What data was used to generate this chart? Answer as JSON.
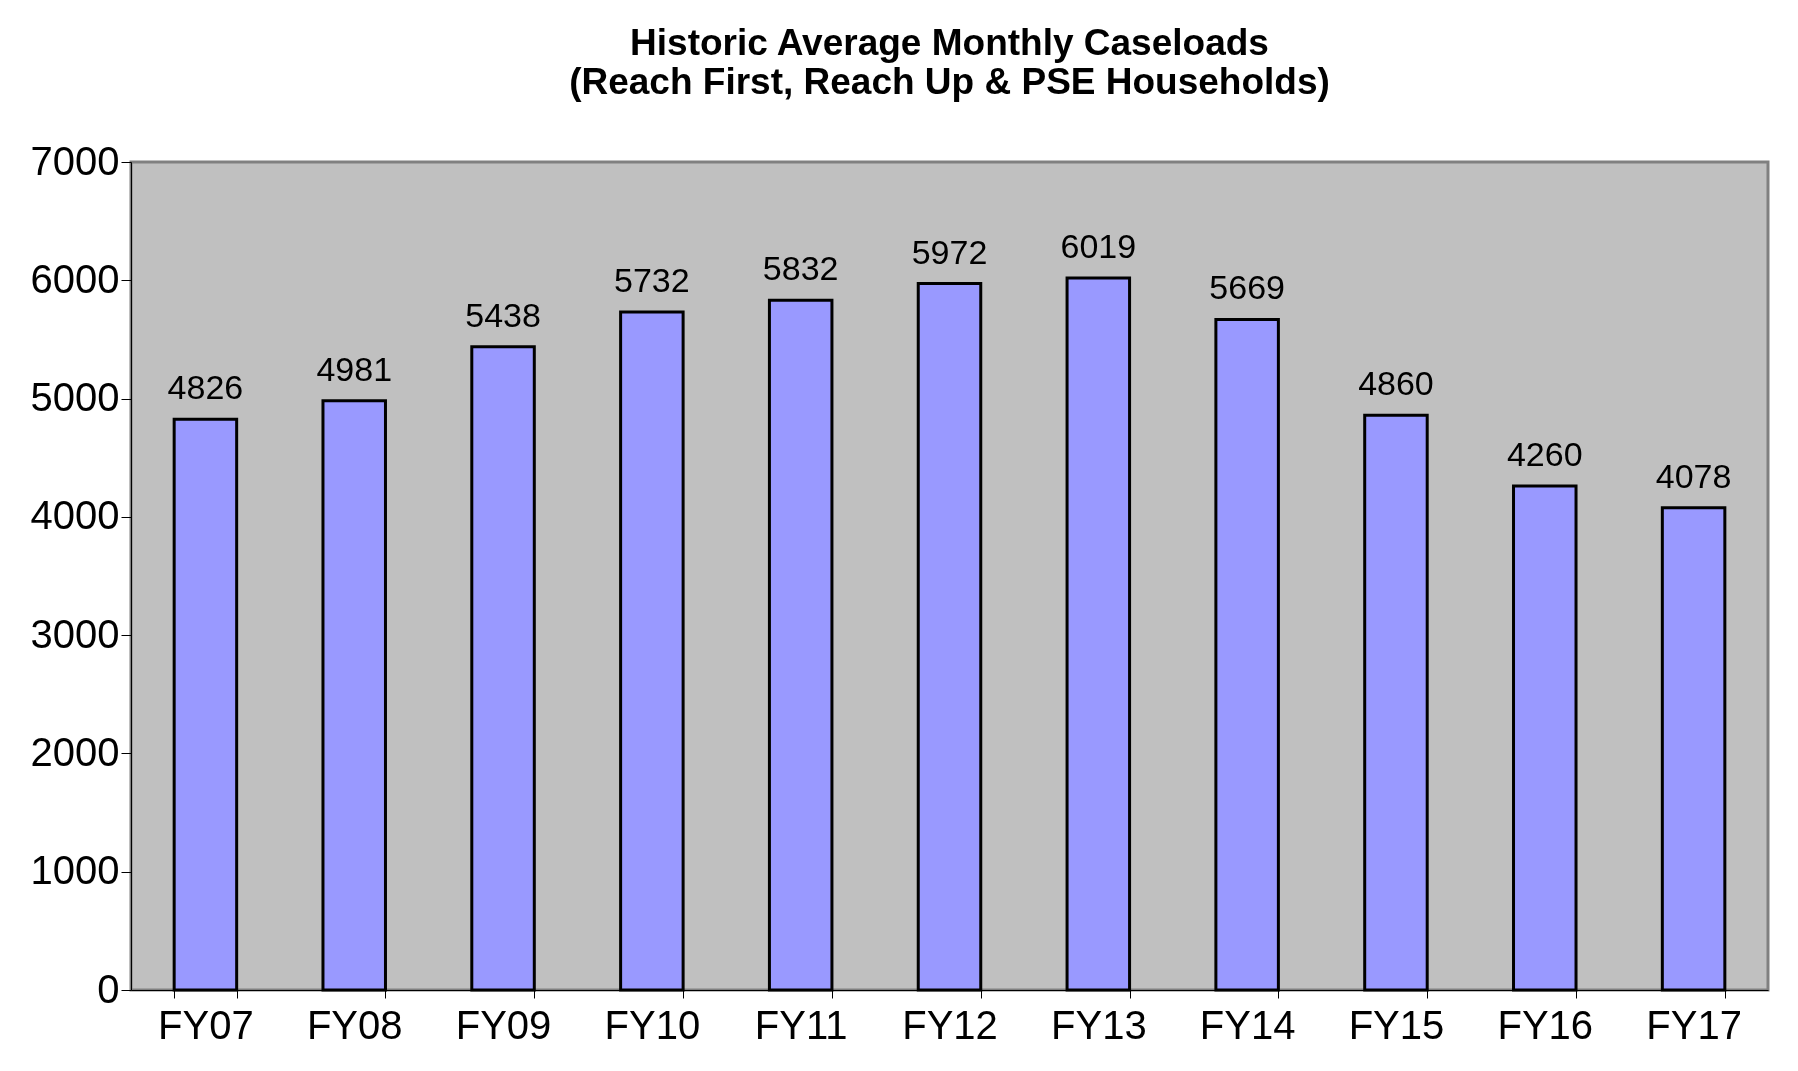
{
  "chart_data": {
    "type": "bar",
    "title": "Historic Average Monthly Caseloads\n(Reach First, Reach Up & PSE Households)",
    "categories": [
      "FY07",
      "FY08",
      "FY09",
      "FY10",
      "FY11",
      "FY12",
      "FY13",
      "FY14",
      "FY15",
      "FY16",
      "FY17"
    ],
    "values": [
      4826,
      4981,
      5438,
      5732,
      5832,
      5972,
      6019,
      5669,
      4860,
      4260,
      4078
    ],
    "color": "#9999ff",
    "ylim": [
      0,
      7000
    ],
    "yticks": [
      0,
      1000,
      2000,
      3000,
      4000,
      5000,
      6000,
      7000
    ],
    "grid": false,
    "data_labels": true
  }
}
